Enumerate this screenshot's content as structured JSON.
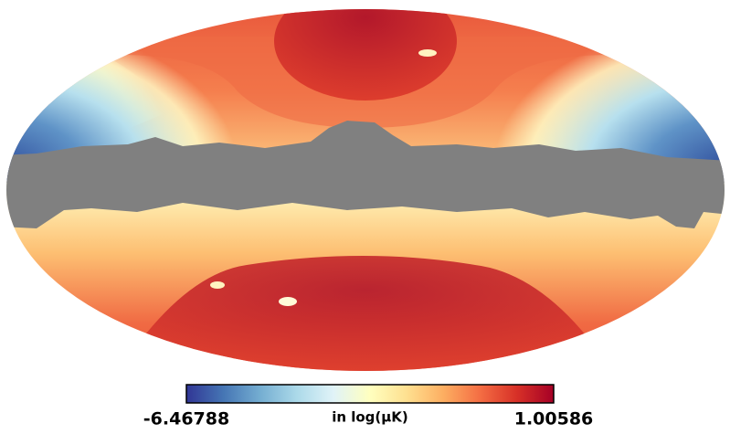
{
  "chart_data": {
    "type": "map",
    "projection": "mollweide",
    "colorbar": {
      "ticks": [
        -6.46788,
        1.00586
      ],
      "label": "in log(μK)"
    }
  }
}
